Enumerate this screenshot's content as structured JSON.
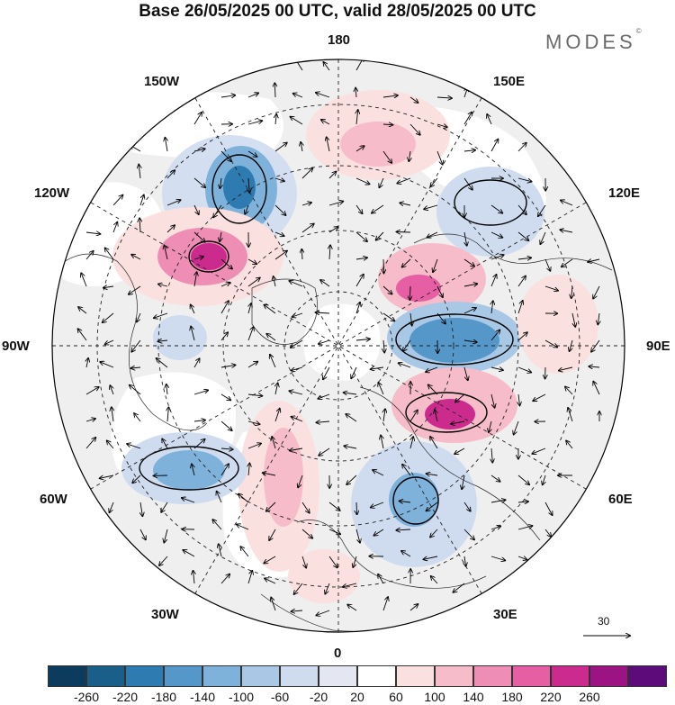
{
  "title": "Base 26/05/2025 00 UTC, valid 28/05/2025 00 UTC",
  "brand": {
    "text": "MODES",
    "mark": "©"
  },
  "longitude_labels": [
    {
      "key": "lon-180",
      "text": "180"
    },
    {
      "key": "lon-150e",
      "text": "150E"
    },
    {
      "key": "lon-120e",
      "text": "120E"
    },
    {
      "key": "lon-90e",
      "text": "90E"
    },
    {
      "key": "lon-60e",
      "text": "60E"
    },
    {
      "key": "lon-30e",
      "text": "30E"
    },
    {
      "key": "lon-0",
      "text": "0"
    },
    {
      "key": "lon-30w",
      "text": "30W"
    },
    {
      "key": "lon-60w",
      "text": "60W"
    },
    {
      "key": "lon-90w",
      "text": "90W"
    },
    {
      "key": "lon-120w",
      "text": "120W"
    },
    {
      "key": "lon-150w",
      "text": "150W"
    }
  ],
  "wind_scale": {
    "value": "30"
  },
  "colorbar": {
    "colors": [
      "#0b3c5d",
      "#1a5f8a",
      "#2e7bb1",
      "#5497c8",
      "#7fb2da",
      "#a9c8e6",
      "#cfdcef",
      "#e4e6f2",
      "#ffffff",
      "#fbe0e0",
      "#f6bcc9",
      "#ef8eb5",
      "#e65ea3",
      "#cc2b8e",
      "#9c1484",
      "#5b0b7a"
    ],
    "labels": [
      "-260",
      "-220",
      "-180",
      "-140",
      "-100",
      "-60",
      "-20",
      "20",
      "60",
      "100",
      "140",
      "180",
      "220",
      "260"
    ]
  },
  "colors": {
    "land": "#efefef",
    "ocean": "#ffffff",
    "contour": "#000000",
    "coast": "#2b2b2b"
  }
}
